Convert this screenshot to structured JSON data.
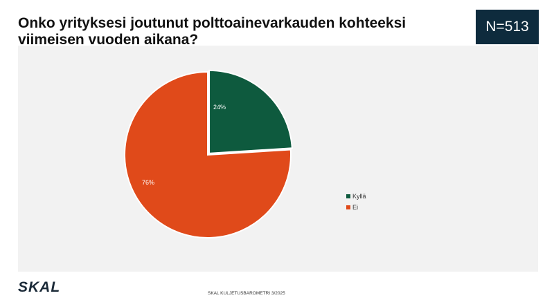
{
  "title": "Onko yrityksesi joutunut polttoainevarkauden kohteeksi viimeisen vuoden aikana?",
  "n_badge": "N=513",
  "footer": {
    "logo": "SKAL",
    "source": "SKAL KULJETUSBAROMETRI 3/2025"
  },
  "colors": {
    "kylla": "#0e5a3e",
    "ei": "#e04a1a",
    "badge": "#0e2b3d",
    "plot_bg": "#f2f2f2"
  },
  "chart_data": {
    "type": "pie",
    "title": "Onko yrityksesi joutunut polttoainevarkauden kohteeksi viimeisen vuoden aikana?",
    "categories": [
      "Kyllä",
      "Ei"
    ],
    "values": [
      24,
      76
    ],
    "labels": [
      "24%",
      "76%"
    ],
    "legend_position": "right"
  }
}
